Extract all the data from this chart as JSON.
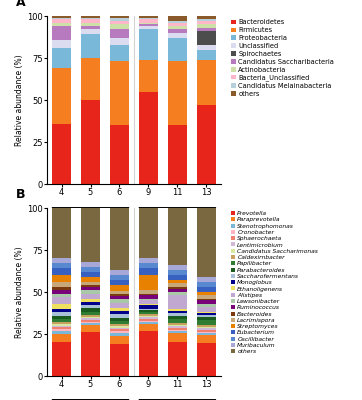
{
  "panel_A": {
    "categories": [
      "4",
      "5",
      "6",
      "9",
      "11",
      "13"
    ],
    "legend_labels": [
      "Bacteroidetes",
      "Firmicutes",
      "Proteobacteria",
      "Unclassified",
      "Spirochaetes",
      "Candidatus Saccharibacteria",
      "Actinobacteria",
      "Bacteria_Unclassified",
      "Candidatus Melainabacteria",
      "others"
    ],
    "colors": [
      "#e8251a",
      "#f57e20",
      "#79b8d8",
      "#dcdcf0",
      "#4d4d4d",
      "#b87abf",
      "#cce0a8",
      "#ffb6c8",
      "#b8d0dc",
      "#8b5a2b"
    ],
    "data": [
      [
        36,
        50,
        35,
        55,
        35,
        47
      ],
      [
        33,
        25,
        38,
        19,
        38,
        27
      ],
      [
        12,
        14,
        10,
        18,
        14,
        6
      ],
      [
        5,
        3,
        4,
        2,
        3,
        3
      ],
      [
        0,
        0,
        0,
        0,
        0,
        8
      ],
      [
        8,
        2,
        5,
        1,
        2,
        2
      ],
      [
        2,
        2,
        3,
        1,
        2,
        2
      ],
      [
        2,
        2,
        2,
        2,
        2,
        2
      ],
      [
        1,
        1,
        2,
        1,
        1,
        1
      ],
      [
        1,
        1,
        1,
        1,
        3,
        2
      ]
    ]
  },
  "panel_B": {
    "categories": [
      "4",
      "5",
      "6",
      "9",
      "11",
      "13"
    ],
    "legend_labels": [
      "Prevotella",
      "Paraprevotella",
      "Stenotrophomonas",
      "Cronobacter",
      "Sphaerochaeta",
      "Lentimicrobium",
      "Candidatus Saccharimonas",
      "Caldexirnbacter",
      "Papilibacter",
      "Parabacteroides",
      "Saccharofermentans",
      "Monoglobus",
      "Ethanoligenens",
      "Alistipes",
      "Lawsonibacter",
      "Ruminococcus",
      "Bacteroides",
      "Lacrimispora",
      "Streptomyces",
      "Eubacterium",
      "Oscillibacter",
      "Muribaculum",
      "others"
    ],
    "colors": [
      "#e8251a",
      "#f57e20",
      "#79b8d8",
      "#ffb6c1",
      "#f08070",
      "#d0b8d8",
      "#d8e8a0",
      "#c8a060",
      "#2e7d32",
      "#1a5c20",
      "#a8c0d8",
      "#00008b",
      "#f0e060",
      "#c0a8d0",
      "#a8c8a8",
      "#780078",
      "#7a3a10",
      "#c8a878",
      "#e88000",
      "#3860c0",
      "#5888d0",
      "#a8a8d8",
      "#7a6840"
    ],
    "data": [
      [
        20,
        27,
        19,
        27,
        20,
        20
      ],
      [
        5,
        4,
        5,
        4,
        5,
        5
      ],
      [
        2,
        1,
        2,
        1,
        1,
        1
      ],
      [
        1,
        1,
        1,
        1,
        1,
        1
      ],
      [
        1,
        1,
        1,
        1,
        1,
        1
      ],
      [
        1,
        1,
        1,
        1,
        1,
        1
      ],
      [
        1,
        1,
        1,
        1,
        1,
        1
      ],
      [
        1,
        1,
        1,
        1,
        1,
        1
      ],
      [
        2,
        2,
        2,
        1,
        2,
        3
      ],
      [
        2,
        2,
        2,
        1,
        2,
        2
      ],
      [
        2,
        2,
        2,
        1,
        2,
        1
      ],
      [
        2,
        2,
        2,
        2,
        1,
        1
      ],
      [
        3,
        2,
        2,
        1,
        1,
        1
      ],
      [
        4,
        3,
        3,
        2,
        8,
        3
      ],
      [
        2,
        2,
        2,
        1,
        2,
        2
      ],
      [
        2,
        2,
        2,
        2,
        2,
        2
      ],
      [
        2,
        1,
        1,
        1,
        1,
        1
      ],
      [
        3,
        2,
        2,
        2,
        2,
        2
      ],
      [
        4,
        3,
        4,
        9,
        2,
        2
      ],
      [
        4,
        3,
        3,
        4,
        3,
        3
      ],
      [
        3,
        3,
        3,
        3,
        3,
        3
      ],
      [
        3,
        3,
        3,
        3,
        3,
        3
      ],
      [
        30,
        33,
        37,
        30,
        33,
        42
      ]
    ]
  },
  "figsize": [
    3.62,
    4.0
  ],
  "dpi": 100
}
